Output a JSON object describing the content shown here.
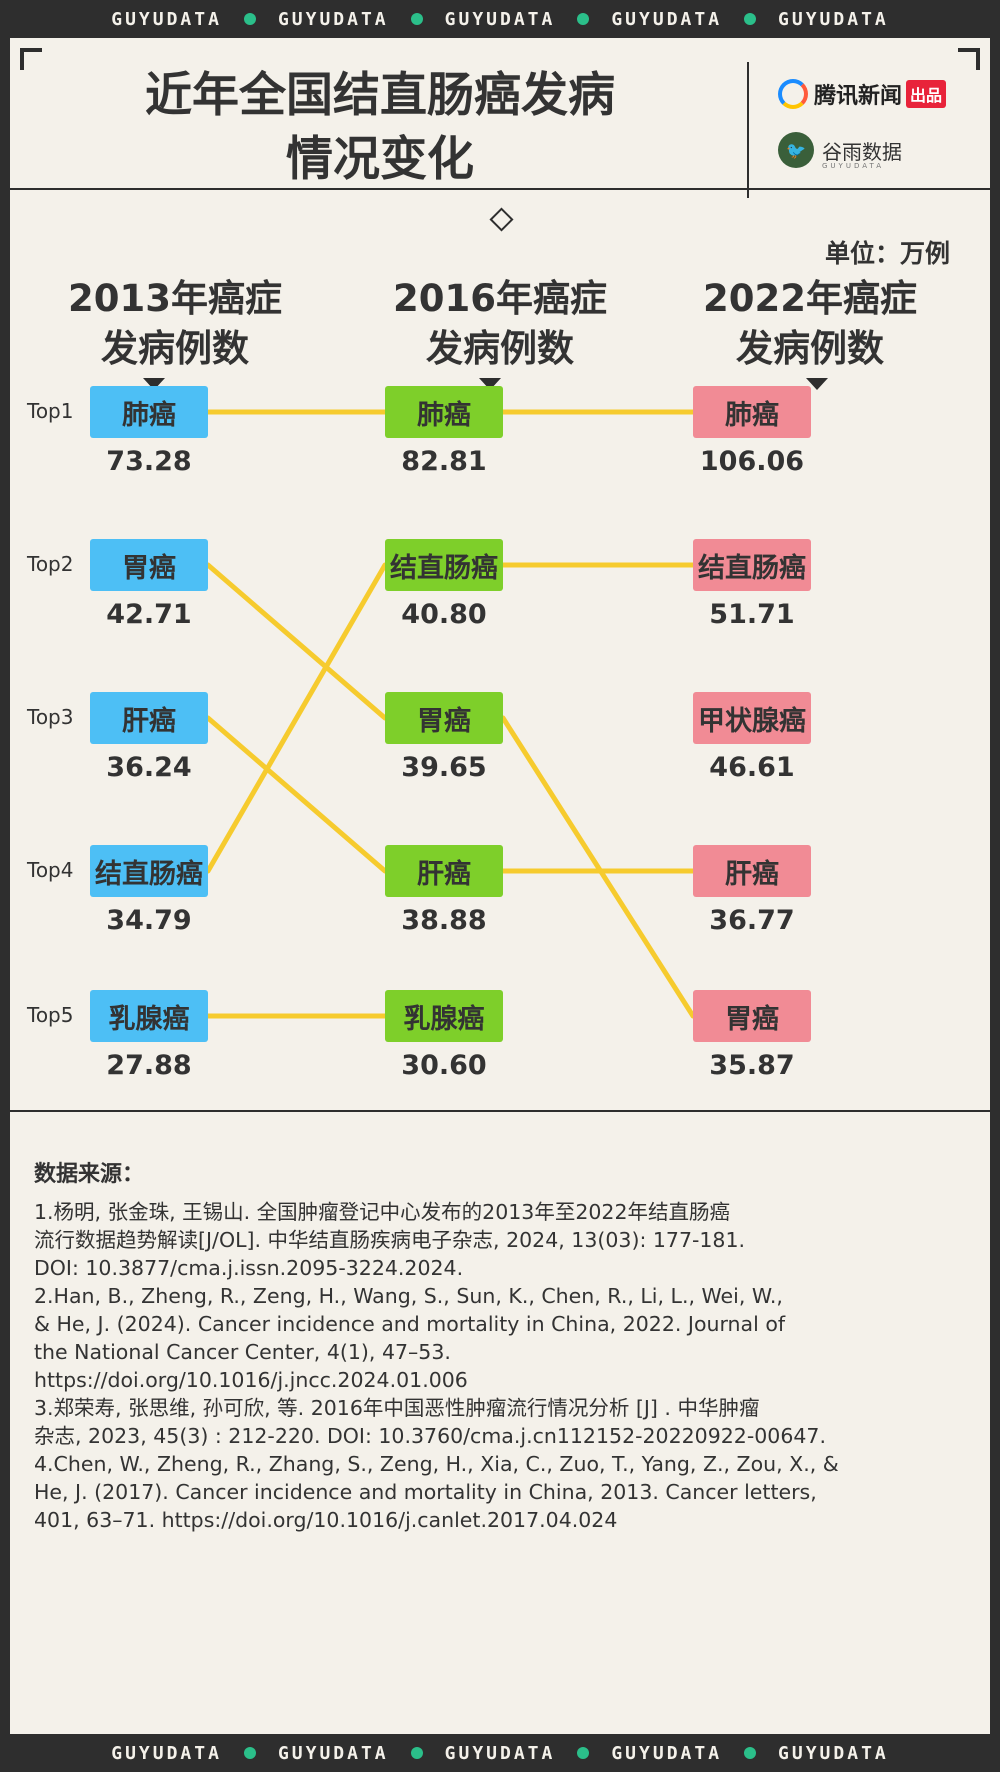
{
  "banner": {
    "word": "GUYUDATA"
  },
  "title": {
    "line1": "近年全国结直肠癌发病",
    "line2": "情况变化"
  },
  "brands": {
    "tencent": "腾讯新闻",
    "tencent_tag": "出品",
    "guyu": "谷雨数据",
    "guyu_sub": "GUYUDATA"
  },
  "unit": "单位：万例",
  "colors": {
    "col2013": "#4dbff5",
    "col2016": "#7ecf2a",
    "col2022": "#f18b95",
    "link": "#f6cb2e",
    "text": "#333333",
    "frame": "#2e2e2e",
    "paper": "#f4f1ea"
  },
  "chart_data": {
    "type": "bump",
    "unit": "万例",
    "ranks": [
      "Top1",
      "Top2",
      "Top3",
      "Top4",
      "Top5"
    ],
    "columns": [
      {
        "year": "2013",
        "header": [
          "2013年癌症",
          "发病例数"
        ],
        "items": [
          {
            "name": "肺癌",
            "value": 73.28
          },
          {
            "name": "胃癌",
            "value": 42.71
          },
          {
            "name": "肝癌",
            "value": 36.24
          },
          {
            "name": "结直肠癌",
            "value": 34.79
          },
          {
            "name": "乳腺癌",
            "value": 27.88
          }
        ]
      },
      {
        "year": "2016",
        "header": [
          "2016年癌症",
          "发病例数"
        ],
        "items": [
          {
            "name": "肺癌",
            "value": 82.81
          },
          {
            "name": "结直肠癌",
            "value": 40.8
          },
          {
            "name": "胃癌",
            "value": 39.65
          },
          {
            "name": "肝癌",
            "value": 38.88
          },
          {
            "name": "乳腺癌",
            "value": 30.6
          }
        ]
      },
      {
        "year": "2022",
        "header": [
          "2022年癌症",
          "发病例数"
        ],
        "items": [
          {
            "name": "肺癌",
            "value": 106.06
          },
          {
            "name": "结直肠癌",
            "value": 51.71
          },
          {
            "name": "甲状腺癌",
            "value": 46.61
          },
          {
            "name": "肝癌",
            "value": 36.77
          },
          {
            "name": "胃癌",
            "value": 35.87
          }
        ]
      }
    ],
    "links": [
      {
        "from_col": 0,
        "from_rank": 1,
        "to_col": 1,
        "to_rank": 1
      },
      {
        "from_col": 0,
        "from_rank": 2,
        "to_col": 1,
        "to_rank": 3
      },
      {
        "from_col": 0,
        "from_rank": 3,
        "to_col": 1,
        "to_rank": 4
      },
      {
        "from_col": 0,
        "from_rank": 4,
        "to_col": 1,
        "to_rank": 2
      },
      {
        "from_col": 0,
        "from_rank": 5,
        "to_col": 1,
        "to_rank": 5
      },
      {
        "from_col": 1,
        "from_rank": 1,
        "to_col": 2,
        "to_rank": 1
      },
      {
        "from_col": 1,
        "from_rank": 2,
        "to_col": 2,
        "to_rank": 2
      },
      {
        "from_col": 1,
        "from_rank": 3,
        "to_col": 2,
        "to_rank": 5
      },
      {
        "from_col": 1,
        "from_rank": 4,
        "to_col": 2,
        "to_rank": 4
      }
    ]
  },
  "sources": {
    "title": "数据来源：",
    "refs": [
      [
        "1.杨明, 张金珠, 王锡山. 全国肿瘤登记中心发布的2013年至2022年结直肠癌",
        "流行数据趋势解读[J/OL]. 中华结直肠疾病电子杂志, 2024, 13(03): 177-181.",
        "DOI: 10.3877/cma.j.issn.2095-3224.2024."
      ],
      [
        "2.Han, B., Zheng, R., Zeng, H., Wang, S., Sun, K., Chen, R., Li, L., Wei, W.,",
        "& He, J. (2024). Cancer incidence and mortality in China, 2022. Journal of",
        "the National Cancer Center, 4(1), 47–53.",
        "https://doi.org/10.1016/j.jncc.2024.01.006"
      ],
      [
        "3.郑荣寿, 张思维, 孙可欣, 等.  2016年中国恶性肿瘤流行情况分析 [J] . 中华肿瘤",
        "杂志, 2023, 45(3) : 212-220. DOI: 10.3760/cma.j.cn112152-20220922-00647."
      ],
      [
        "4.Chen, W., Zheng, R., Zhang, S., Zeng, H., Xia, C., Zuo, T., Yang, Z., Zou, X., &",
        " He, J. (2017). Cancer incidence and mortality in China, 2013. Cancer letters,",
        "401, 63–71. https://doi.org/10.1016/j.canlet.2017.04.024"
      ]
    ]
  }
}
